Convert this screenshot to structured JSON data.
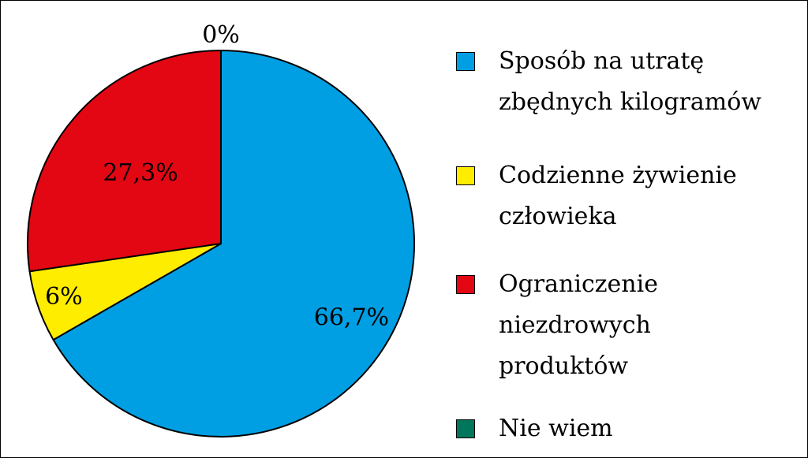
{
  "chart_data": {
    "type": "pie",
    "slices": [
      {
        "label": "Sposób na utratę zbędnych kilogramów",
        "value": 66.7,
        "display": "66,7%",
        "color": "#009fe3"
      },
      {
        "label": "Codzienne żywienie człowieka",
        "value": 6,
        "display": "6%",
        "color": "#ffed00"
      },
      {
        "label": "Ograniczenie niezdrowych produktów",
        "value": 27.3,
        "display": "27,3%",
        "color": "#e30613"
      },
      {
        "label": "Nie wiem",
        "value": 0,
        "display": "0%",
        "color": "#00775a"
      }
    ],
    "legend_position": "right"
  },
  "legend": [
    {
      "lines": [
        "Sposób na utratę",
        "zbędnych kilogramów"
      ],
      "color": "#009fe3"
    },
    {
      "lines": [
        "Codzienne żywienie",
        "człowieka"
      ],
      "color": "#ffed00"
    },
    {
      "lines": [
        "Ograniczenie",
        "niezdrowych",
        "produktów"
      ],
      "color": "#e30613"
    },
    {
      "lines": [
        "Nie wiem"
      ],
      "color": "#00775a"
    }
  ]
}
